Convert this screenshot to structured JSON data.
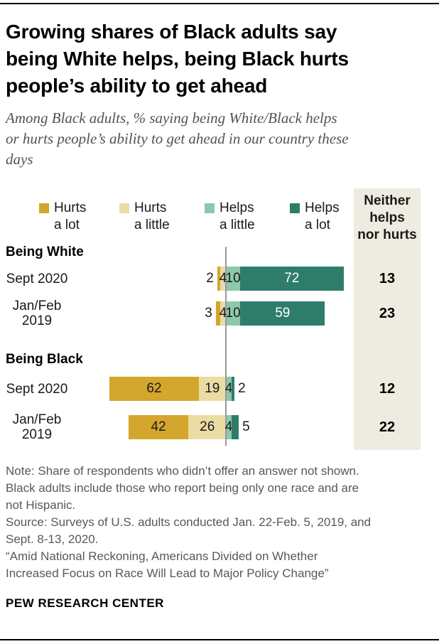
{
  "header": {
    "title": "Growing shares of Black adults say\nbeing White helps, being Black hurts\npeople’s ability to get ahead",
    "subtitle": "Among Black adults, % saying being White/Black helps\nor hurts people’s ability to get ahead in our country these\ndays"
  },
  "chart_data": {
    "type": "bar",
    "variant": "horizontal-diverging-stacked",
    "unit": "percent of Black adults",
    "legend": [
      {
        "key": "hurts-a-lot",
        "label": "Hurts a lot",
        "color": "#d3a62d"
      },
      {
        "key": "hurts-a-little",
        "label": "Hurts a little",
        "color": "#ebdba4"
      },
      {
        "key": "helps-a-little",
        "label": "Helps a little",
        "color": "#8ec7ae"
      },
      {
        "key": "helps-a-lot",
        "label": "Helps a lot",
        "color": "#2e7d6a"
      }
    ],
    "neither_column": {
      "header": "Neither\nhelps\nnor hurts",
      "background": "#eeebe0"
    },
    "groups": [
      {
        "label": "Being White",
        "rows": [
          {
            "label": "Sept 2020",
            "values": [
              2,
              4,
              10,
              72
            ],
            "neither": 13
          },
          {
            "label": "Jan/Feb 2019",
            "values": [
              3,
              4,
              10,
              59
            ],
            "neither": 23
          }
        ]
      },
      {
        "label": "Being Black",
        "rows": [
          {
            "label": "Sept 2020",
            "values": [
              62,
              19,
              4,
              2
            ],
            "neither": 12
          },
          {
            "label": "Jan/Feb 2019",
            "values": [
              42,
              26,
              4,
              5
            ],
            "neither": 22
          }
        ]
      }
    ]
  },
  "notes": {
    "note": "Note: Share of respondents who didn’t offer an answer not shown.\nBlack adults include those who report being only one race and are\nnot Hispanic.",
    "source": "Source: Surveys of U.S. adults conducted Jan. 22-Feb. 5, 2019, and\nSept. 8-13, 2020.",
    "report": "“Amid National Reckoning, Americans Divided on Whether\nIncreased Focus on Race Will Lead to Major Policy Change”"
  },
  "footer": {
    "brand": "PEW RESEARCH CENTER"
  }
}
